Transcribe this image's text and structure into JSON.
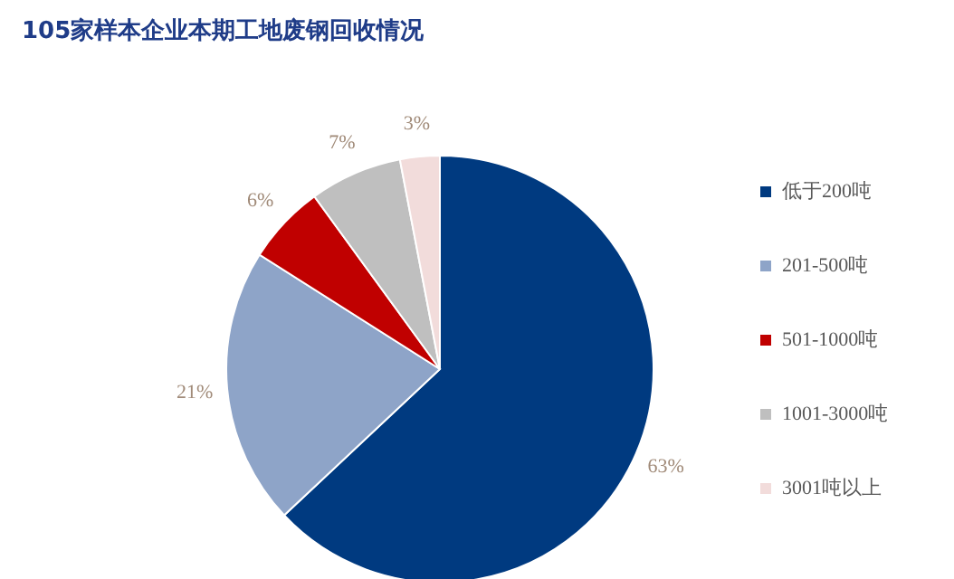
{
  "chart_data": {
    "type": "pie",
    "title": "105家样本企业本期工地废钢回收情况",
    "categories": [
      "低于200吨",
      "201-500吨",
      "501-1000吨",
      "1001-3000吨",
      "3001吨以上"
    ],
    "values": [
      63,
      21,
      6,
      7,
      3
    ],
    "value_labels": [
      "63%",
      "21%",
      "6%",
      "7%",
      "3%"
    ],
    "colors": [
      "#003a80",
      "#8ea4c8",
      "#c00000",
      "#bfbfbf",
      "#f2dcdb"
    ],
    "legend": "right"
  }
}
